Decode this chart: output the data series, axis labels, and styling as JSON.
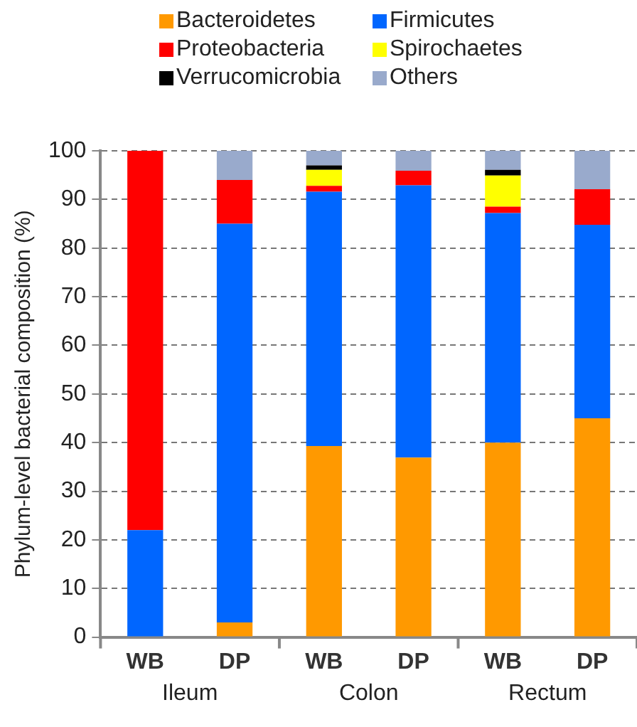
{
  "chart_data": {
    "type": "bar",
    "stacked": true,
    "ylabel": "Phylum-level bacterial composition (%)",
    "categories": [
      "WB",
      "DP",
      "WB",
      "DP",
      "WB",
      "DP"
    ],
    "annotations": [
      "Ileum",
      "Colon",
      "Rectum"
    ],
    "series": [
      {
        "name": "Bacteroidetes",
        "color": "#ff9900",
        "values": [
          0,
          3,
          39.3,
          36.9,
          40.0,
          45.0
        ]
      },
      {
        "name": "Firmicutes",
        "color": "#0066ff",
        "values": [
          22,
          82,
          52.3,
          56.0,
          47.2,
          39.8
        ]
      },
      {
        "name": "Proteobacteria",
        "color": "#ff0000",
        "values": [
          78,
          9,
          1.2,
          3.0,
          1.3,
          7.3
        ]
      },
      {
        "name": "Spirochaetes",
        "color": "#ffff00",
        "values": [
          0,
          0,
          3.3,
          0,
          6.4,
          0
        ]
      },
      {
        "name": "Verrucomicrobia",
        "color": "#000000",
        "values": [
          0,
          0,
          0.9,
          0,
          1.2,
          0
        ]
      },
      {
        "name": "Others",
        "color": "#99aacc",
        "values": [
          0,
          6,
          3.0,
          4.1,
          3.9,
          7.9
        ]
      }
    ],
    "ylim": [
      0,
      100
    ],
    "yticks": [
      0,
      10,
      20,
      30,
      40,
      50,
      60,
      70,
      80,
      90,
      100
    ],
    "grid": "y",
    "legend": "top"
  }
}
